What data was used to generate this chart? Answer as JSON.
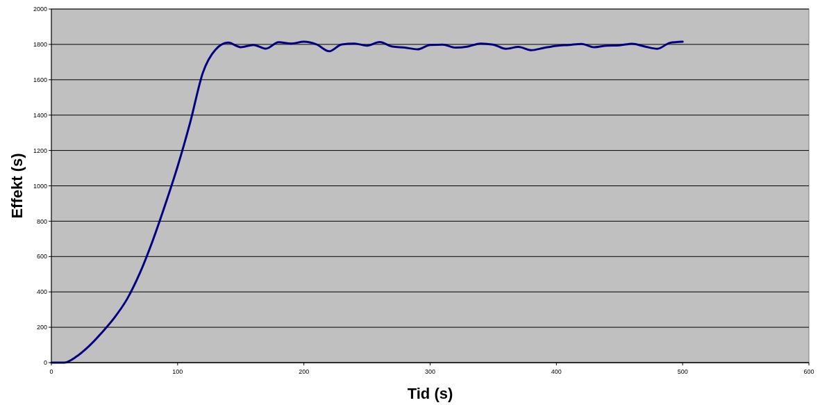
{
  "chart_data": {
    "type": "line",
    "xlabel": "Tid (s)",
    "ylabel": "Effekt (s)",
    "x": [
      0,
      10,
      20,
      30,
      40,
      50,
      60,
      70,
      80,
      90,
      100,
      110,
      120,
      130,
      140,
      150,
      160,
      170,
      180,
      190,
      200,
      210,
      220,
      230,
      240,
      250,
      260,
      270,
      280,
      290,
      300,
      310,
      320,
      330,
      340,
      350,
      360,
      370,
      380,
      390,
      400,
      410,
      420,
      430,
      440,
      450,
      460,
      470,
      480,
      490,
      500
    ],
    "series": [
      {
        "color": "#000080",
        "values": [
          0,
          0,
          35,
          95,
          170,
          255,
          360,
          505,
          685,
          890,
          1110,
          1360,
          1640,
          1770,
          1810,
          1784,
          1797,
          1776,
          1812,
          1805,
          1815,
          1800,
          1761,
          1800,
          1805,
          1793,
          1813,
          1788,
          1782,
          1772,
          1797,
          1799,
          1782,
          1788,
          1805,
          1799,
          1775,
          1786,
          1767,
          1780,
          1792,
          1797,
          1803,
          1784,
          1793,
          1795,
          1804,
          1788,
          1775,
          1809,
          1815
        ]
      }
    ],
    "xlim": [
      0,
      600
    ],
    "xticks": [
      0,
      100,
      200,
      300,
      400,
      500,
      600
    ],
    "ylim": [
      0,
      2000
    ],
    "yticks": [
      0,
      200,
      400,
      600,
      800,
      1000,
      1200,
      1400,
      1600,
      1800,
      2000
    ],
    "grid": "y"
  }
}
